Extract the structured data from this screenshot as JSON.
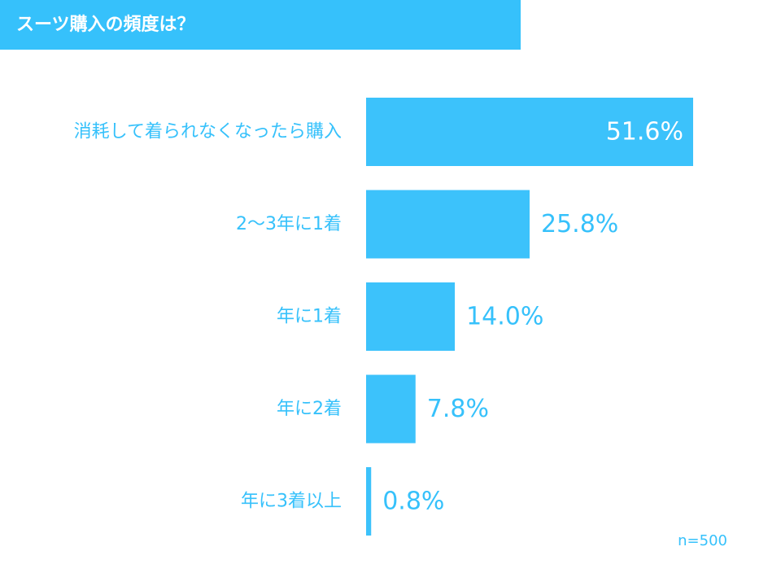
{
  "title": "スーツ購入の頻度は？",
  "note": "n=500",
  "colors": {
    "bar": "#3cc2fb",
    "label": "#36c1fb",
    "title_bg": "#36c1fb",
    "inside_label": "#ffffff"
  },
  "chart_data": {
    "type": "bar",
    "orientation": "horizontal",
    "categories": [
      "消耗して着られなくなったら購入",
      "2～3年に1着",
      "年に1着",
      "年に2着",
      "年に3着以上"
    ],
    "values": [
      51.6,
      25.8,
      14.0,
      7.8,
      0.8
    ],
    "value_labels": [
      "51.6%",
      "25.8%",
      "14.0%",
      "7.8%",
      "0.8%"
    ],
    "unit": "%",
    "xlim": [
      0,
      51.6
    ],
    "grid": false,
    "legend": "none"
  }
}
